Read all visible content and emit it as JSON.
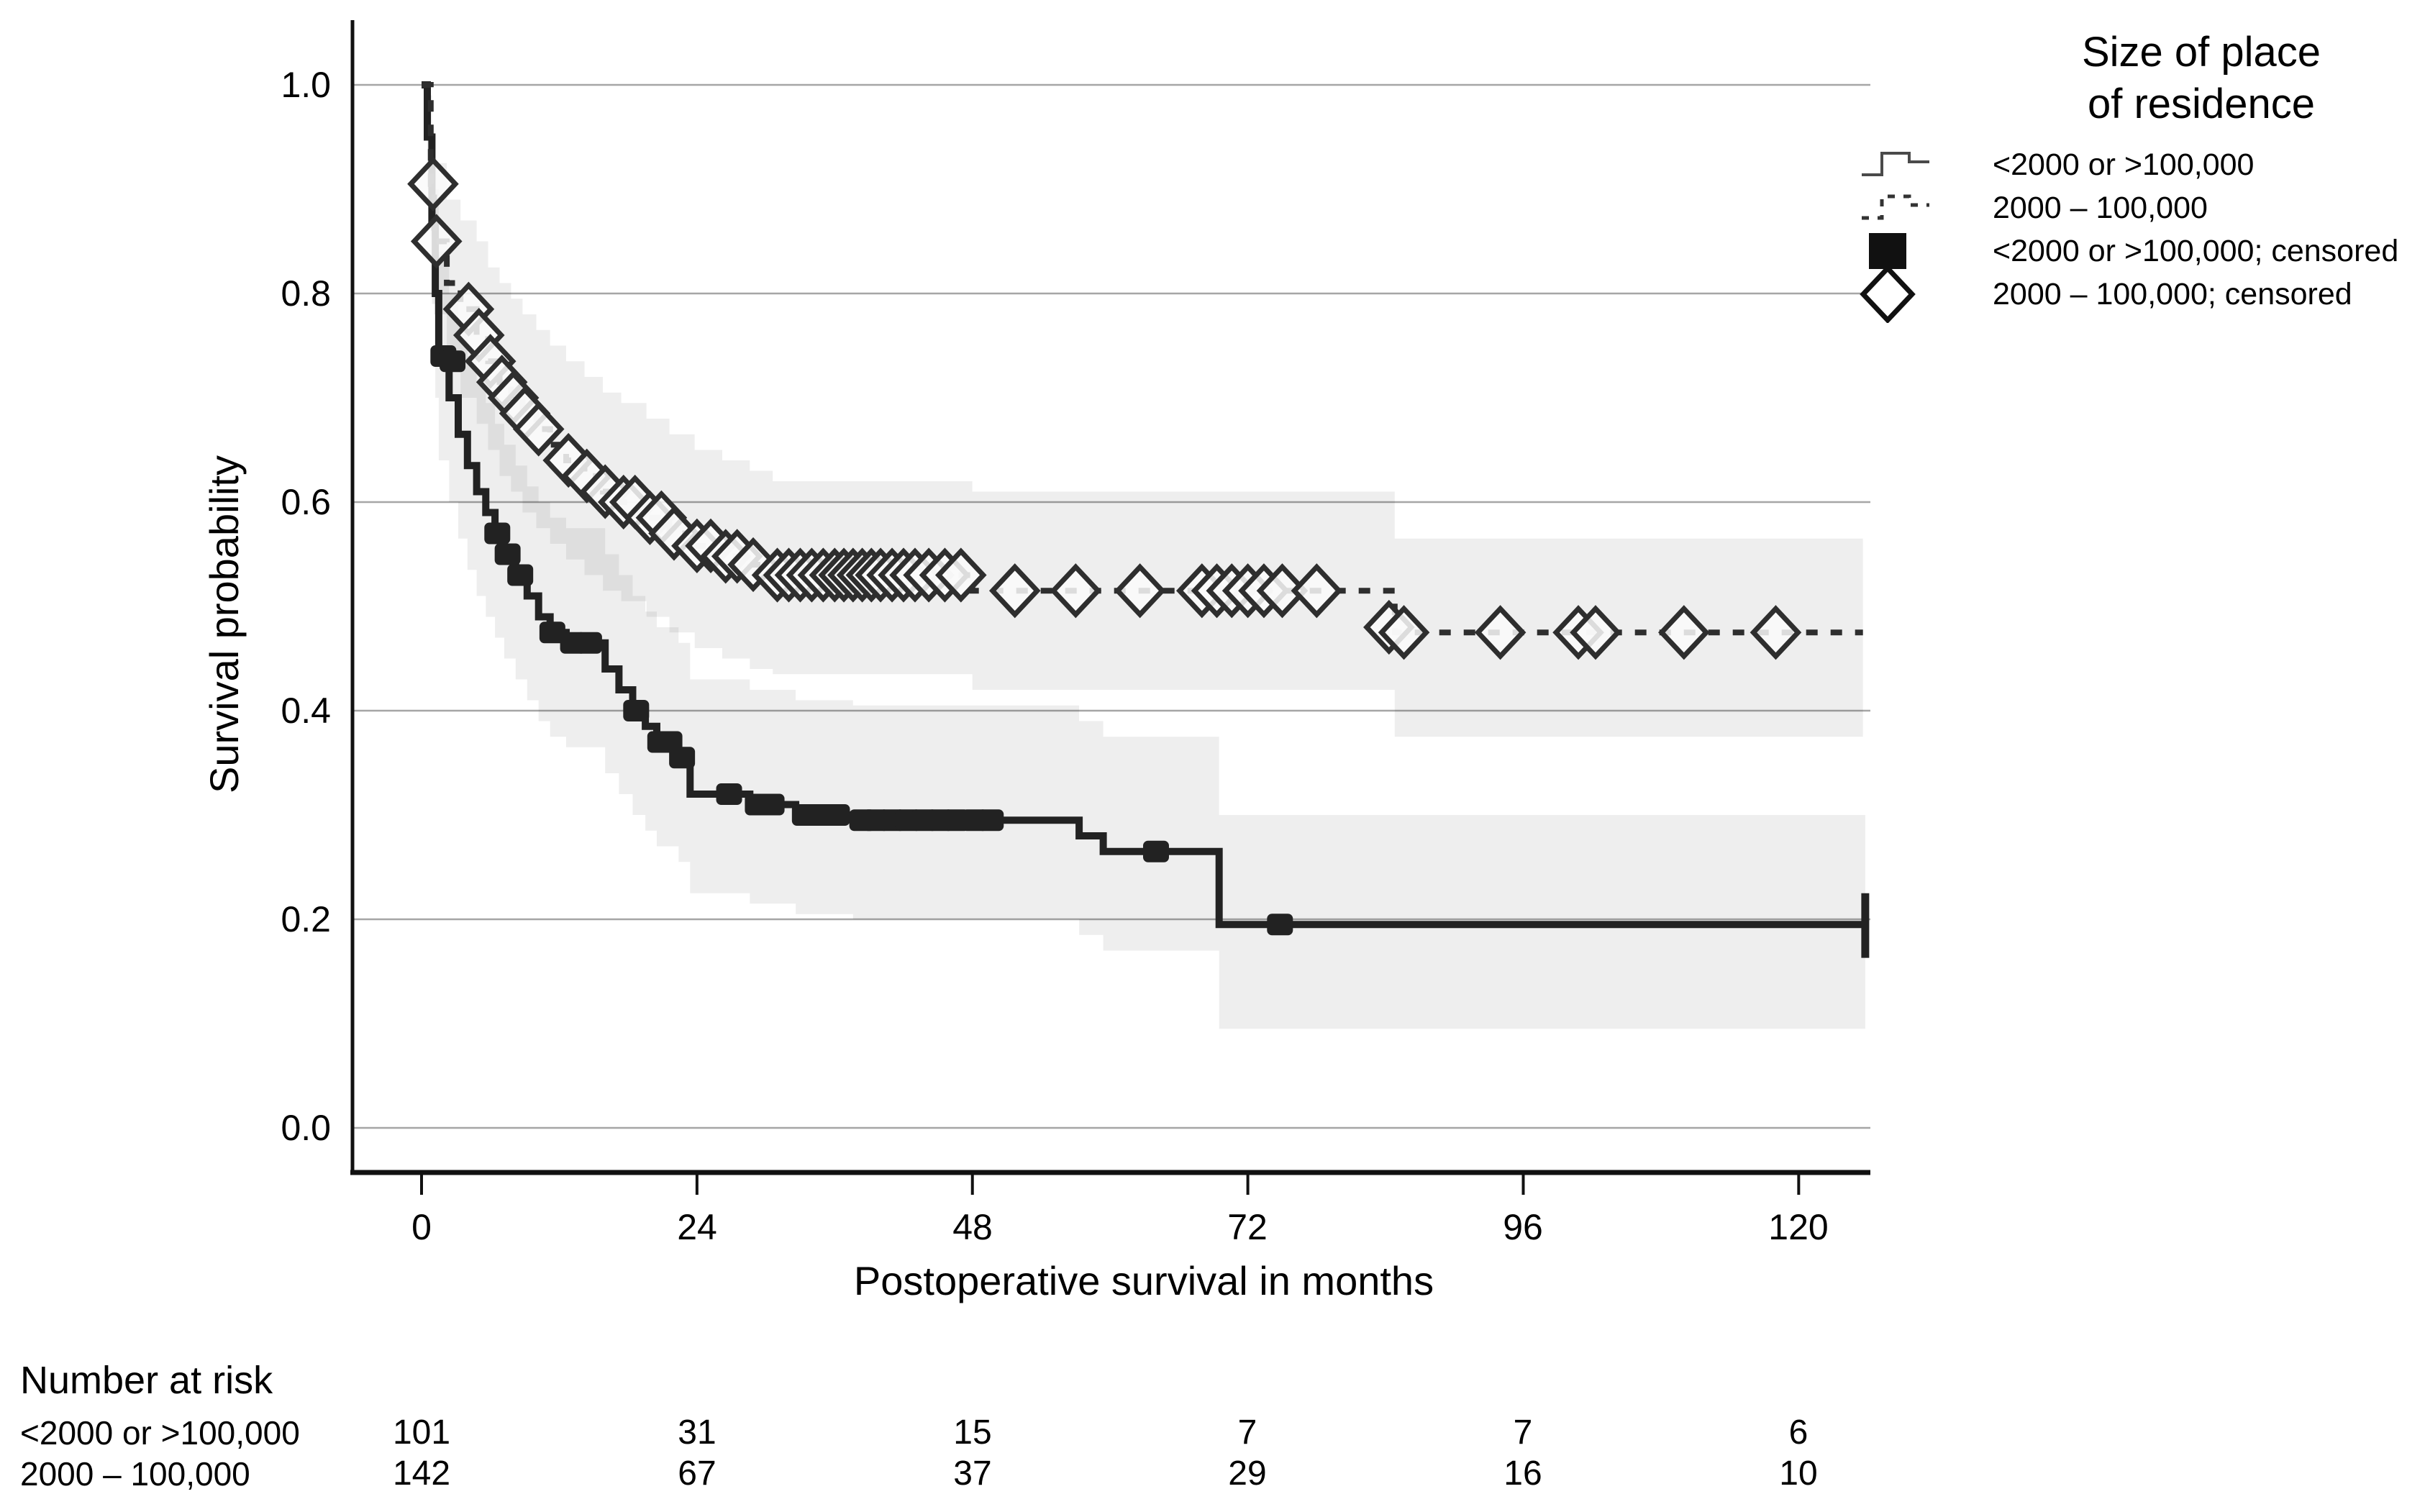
{
  "chart_data": {
    "type": "line",
    "subtype": "kaplan-meier-step",
    "xlabel": "Postoperative survival in months",
    "ylabel": "Survival probability",
    "x_ticks": [
      "0",
      "24",
      "48",
      "72",
      "96",
      "120"
    ],
    "y_ticks": [
      "1.0",
      "0.8",
      "0.6",
      "0.4",
      "0.2",
      "0.0"
    ],
    "xlim": [
      0,
      126
    ],
    "ylim": [
      0.0,
      1.0
    ],
    "grid": "horizontal",
    "colors": {
      "axis": "#111111",
      "grid": "#a6a6a6",
      "band": "rgba(0,0,0,0.065)"
    },
    "legend": {
      "title_line1": "Size of place",
      "title_line2": "of residence",
      "position": "right-top",
      "entries": [
        {
          "label": "<2000 or >100,000",
          "icon": "solid-step-line"
        },
        {
          "label": "2000 – 100,000",
          "icon": "dashed-step-line"
        },
        {
          "label": "<2000 or >100,000; censored",
          "icon": "filled-square"
        },
        {
          "label": "2000 – 100,000; censored",
          "icon": "open-diamond"
        }
      ]
    },
    "series": [
      {
        "id": "small-or-large",
        "name": "<2000 or >100,000",
        "style": "solid",
        "dash": "",
        "color": "#222222",
        "width": 10,
        "marker": "filled-square",
        "end": 125.8,
        "steps": [
          [
            0.5,
            0.95
          ],
          [
            0.9,
            0.87
          ],
          [
            1.2,
            0.8
          ],
          [
            1.5,
            0.74
          ],
          [
            2.4,
            0.7
          ],
          [
            3.2,
            0.665
          ],
          [
            4.0,
            0.635
          ],
          [
            4.8,
            0.61
          ],
          [
            5.6,
            0.59
          ],
          [
            6.4,
            0.57
          ],
          [
            7.2,
            0.55
          ],
          [
            8.2,
            0.53
          ],
          [
            9.2,
            0.51
          ],
          [
            10.2,
            0.49
          ],
          [
            11.2,
            0.475
          ],
          [
            12.6,
            0.465
          ],
          [
            16.0,
            0.44
          ],
          [
            17.2,
            0.42
          ],
          [
            18.4,
            0.4
          ],
          [
            19.5,
            0.385
          ],
          [
            20.5,
            0.37
          ],
          [
            22.4,
            0.355
          ],
          [
            23.4,
            0.32
          ],
          [
            28.6,
            0.31
          ],
          [
            32.6,
            0.3
          ],
          [
            37.6,
            0.295
          ],
          [
            57.3,
            0.28
          ],
          [
            59.4,
            0.265
          ],
          [
            69.5,
            0.195
          ]
        ],
        "censored": [
          [
            1.9,
            0.74
          ],
          [
            2.7,
            0.735
          ],
          [
            6.6,
            0.57
          ],
          [
            7.5,
            0.55
          ],
          [
            8.6,
            0.53
          ],
          [
            11.4,
            0.475
          ],
          [
            13.2,
            0.465
          ],
          [
            14.6,
            0.465
          ],
          [
            18.7,
            0.4
          ],
          [
            20.8,
            0.37
          ],
          [
            21.6,
            0.37
          ],
          [
            22.7,
            0.355
          ],
          [
            26.8,
            0.32
          ],
          [
            29.3,
            0.31
          ],
          [
            30.5,
            0.31
          ],
          [
            33.4,
            0.3
          ],
          [
            34.8,
            0.3
          ],
          [
            36.2,
            0.3
          ],
          [
            38.4,
            0.295
          ],
          [
            39.6,
            0.295
          ],
          [
            41.0,
            0.295
          ],
          [
            42.4,
            0.295
          ],
          [
            43.8,
            0.295
          ],
          [
            45.2,
            0.295
          ],
          [
            46.6,
            0.295
          ],
          [
            48.2,
            0.295
          ],
          [
            49.6,
            0.295
          ],
          [
            64.0,
            0.265
          ],
          [
            74.8,
            0.195
          ]
        ],
        "ci": {
          "hi": [
            [
              0.5,
              0.99
            ],
            [
              0.9,
              0.95
            ],
            [
              1.2,
              0.9
            ],
            [
              1.5,
              0.84
            ],
            [
              2.4,
              0.8
            ],
            [
              3.2,
              0.77
            ],
            [
              4.0,
              0.74
            ],
            [
              4.8,
              0.715
            ],
            [
              5.6,
              0.695
            ],
            [
              6.4,
              0.675
            ],
            [
              7.2,
              0.655
            ],
            [
              8.2,
              0.635
            ],
            [
              9.2,
              0.615
            ],
            [
              10.2,
              0.6
            ],
            [
              11.2,
              0.585
            ],
            [
              12.6,
              0.575
            ],
            [
              16.0,
              0.55
            ],
            [
              17.2,
              0.53
            ],
            [
              18.4,
              0.51
            ],
            [
              19.5,
              0.495
            ],
            [
              20.5,
              0.48
            ],
            [
              22.4,
              0.465
            ],
            [
              23.4,
              0.43
            ],
            [
              28.6,
              0.42
            ],
            [
              32.6,
              0.41
            ],
            [
              37.6,
              0.405
            ],
            [
              57.3,
              0.39
            ],
            [
              59.4,
              0.375
            ],
            [
              69.5,
              0.3
            ]
          ],
          "lo": [
            [
              0.5,
              0.9
            ],
            [
              0.9,
              0.79
            ],
            [
              1.2,
              0.7
            ],
            [
              1.5,
              0.64
            ],
            [
              2.4,
              0.6
            ],
            [
              3.2,
              0.565
            ],
            [
              4.0,
              0.535
            ],
            [
              4.8,
              0.51
            ],
            [
              5.6,
              0.49
            ],
            [
              6.4,
              0.47
            ],
            [
              7.2,
              0.45
            ],
            [
              8.2,
              0.43
            ],
            [
              9.2,
              0.41
            ],
            [
              10.2,
              0.39
            ],
            [
              11.2,
              0.375
            ],
            [
              12.6,
              0.365
            ],
            [
              16.0,
              0.34
            ],
            [
              17.2,
              0.32
            ],
            [
              18.4,
              0.3
            ],
            [
              19.5,
              0.285
            ],
            [
              20.5,
              0.27
            ],
            [
              22.4,
              0.255
            ],
            [
              23.4,
              0.225
            ],
            [
              28.6,
              0.215
            ],
            [
              32.6,
              0.205
            ],
            [
              37.6,
              0.2
            ],
            [
              57.3,
              0.185
            ],
            [
              59.4,
              0.17
            ],
            [
              69.5,
              0.095
            ]
          ]
        }
      },
      {
        "id": "mid-size",
        "name": "2000 – 100,000",
        "style": "dashed",
        "dash": "16 18",
        "color": "#2e2e2e",
        "width": 8,
        "marker": "open-diamond",
        "end": 125.6,
        "steps": [
          [
            0.8,
            0.905
          ],
          [
            1.1,
            0.85
          ],
          [
            2.2,
            0.81
          ],
          [
            3.4,
            0.785
          ],
          [
            4.8,
            0.76
          ],
          [
            5.8,
            0.735
          ],
          [
            6.8,
            0.715
          ],
          [
            7.8,
            0.7
          ],
          [
            8.8,
            0.685
          ],
          [
            10.0,
            0.67
          ],
          [
            11.2,
            0.655
          ],
          [
            12.6,
            0.64
          ],
          [
            14.2,
            0.625
          ],
          [
            15.8,
            0.61
          ],
          [
            17.4,
            0.6
          ],
          [
            19.6,
            0.585
          ],
          [
            21.6,
            0.57
          ],
          [
            23.8,
            0.558
          ],
          [
            26.2,
            0.548
          ],
          [
            28.6,
            0.54
          ],
          [
            30.6,
            0.53
          ],
          [
            48.0,
            0.515
          ],
          [
            84.8,
            0.475
          ]
        ],
        "censored": [
          [
            1.0,
            0.905
          ],
          [
            1.3,
            0.85
          ],
          [
            4.1,
            0.785
          ],
          [
            5.0,
            0.76
          ],
          [
            6.0,
            0.735
          ],
          [
            7.0,
            0.715
          ],
          [
            8.0,
            0.7
          ],
          [
            9.0,
            0.685
          ],
          [
            10.2,
            0.67
          ],
          [
            12.8,
            0.64
          ],
          [
            14.4,
            0.625
          ],
          [
            16.0,
            0.61
          ],
          [
            17.6,
            0.6
          ],
          [
            18.6,
            0.6
          ],
          [
            19.9,
            0.585
          ],
          [
            20.9,
            0.585
          ],
          [
            22.0,
            0.57
          ],
          [
            24.0,
            0.558
          ],
          [
            25.2,
            0.558
          ],
          [
            26.5,
            0.548
          ],
          [
            27.5,
            0.548
          ],
          [
            28.9,
            0.54
          ],
          [
            31.0,
            0.53
          ],
          [
            32.0,
            0.53
          ],
          [
            33.0,
            0.53
          ],
          [
            34.0,
            0.53
          ],
          [
            35.0,
            0.53
          ],
          [
            36.0,
            0.53
          ],
          [
            36.8,
            0.53
          ],
          [
            37.6,
            0.53
          ],
          [
            38.4,
            0.53
          ],
          [
            39.2,
            0.53
          ],
          [
            40.0,
            0.53
          ],
          [
            41.0,
            0.53
          ],
          [
            42.0,
            0.53
          ],
          [
            43.0,
            0.53
          ],
          [
            44.2,
            0.53
          ],
          [
            45.6,
            0.53
          ],
          [
            47.0,
            0.53
          ],
          [
            51.7,
            0.515
          ],
          [
            57.0,
            0.515
          ],
          [
            62.6,
            0.515
          ],
          [
            68.0,
            0.515
          ],
          [
            69.3,
            0.515
          ],
          [
            70.6,
            0.515
          ],
          [
            72.0,
            0.515
          ],
          [
            73.4,
            0.515
          ],
          [
            75.0,
            0.515
          ],
          [
            78.0,
            0.515
          ],
          [
            84.3,
            0.48
          ],
          [
            85.6,
            0.475
          ],
          [
            94.0,
            0.475
          ],
          [
            100.8,
            0.475
          ],
          [
            102.3,
            0.475
          ],
          [
            110.0,
            0.475
          ],
          [
            118.0,
            0.475
          ]
        ],
        "ci": {
          "hi": [
            [
              0.8,
              0.96
            ],
            [
              1.1,
              0.925
            ],
            [
              2.2,
              0.89
            ],
            [
              3.4,
              0.87
            ],
            [
              4.8,
              0.85
            ],
            [
              5.8,
              0.825
            ],
            [
              6.8,
              0.81
            ],
            [
              7.8,
              0.795
            ],
            [
              8.8,
              0.78
            ],
            [
              10.0,
              0.765
            ],
            [
              11.2,
              0.75
            ],
            [
              12.6,
              0.735
            ],
            [
              14.2,
              0.72
            ],
            [
              15.8,
              0.705
            ],
            [
              17.4,
              0.695
            ],
            [
              19.6,
              0.68
            ],
            [
              21.6,
              0.665
            ],
            [
              23.8,
              0.65
            ],
            [
              26.2,
              0.64
            ],
            [
              28.6,
              0.63
            ],
            [
              30.6,
              0.62
            ],
            [
              48.0,
              0.61
            ],
            [
              84.8,
              0.565
            ]
          ],
          "lo": [
            [
              0.8,
              0.855
            ],
            [
              1.1,
              0.78
            ],
            [
              2.2,
              0.73
            ],
            [
              3.4,
              0.7
            ],
            [
              4.8,
              0.675
            ],
            [
              5.8,
              0.65
            ],
            [
              6.8,
              0.625
            ],
            [
              7.8,
              0.61
            ],
            [
              8.8,
              0.59
            ],
            [
              10.0,
              0.575
            ],
            [
              11.2,
              0.56
            ],
            [
              12.6,
              0.545
            ],
            [
              14.2,
              0.53
            ],
            [
              15.8,
              0.515
            ],
            [
              17.4,
              0.505
            ],
            [
              19.6,
              0.49
            ],
            [
              21.6,
              0.475
            ],
            [
              23.8,
              0.46
            ],
            [
              26.2,
              0.45
            ],
            [
              28.6,
              0.44
            ],
            [
              30.6,
              0.435
            ],
            [
              48.0,
              0.42
            ],
            [
              84.8,
              0.375
            ]
          ]
        }
      }
    ]
  },
  "number_at_risk": {
    "header": "Number at risk",
    "time_points": [
      "0",
      "24",
      "48",
      "72",
      "96",
      "120"
    ],
    "rows": [
      {
        "label": "<2000 or >100,000",
        "values": [
          "101",
          "31",
          "15",
          "7",
          "7",
          "6"
        ]
      },
      {
        "label": "2000 – 100,000",
        "values": [
          "142",
          "67",
          "37",
          "29",
          "16",
          "10"
        ]
      }
    ]
  }
}
